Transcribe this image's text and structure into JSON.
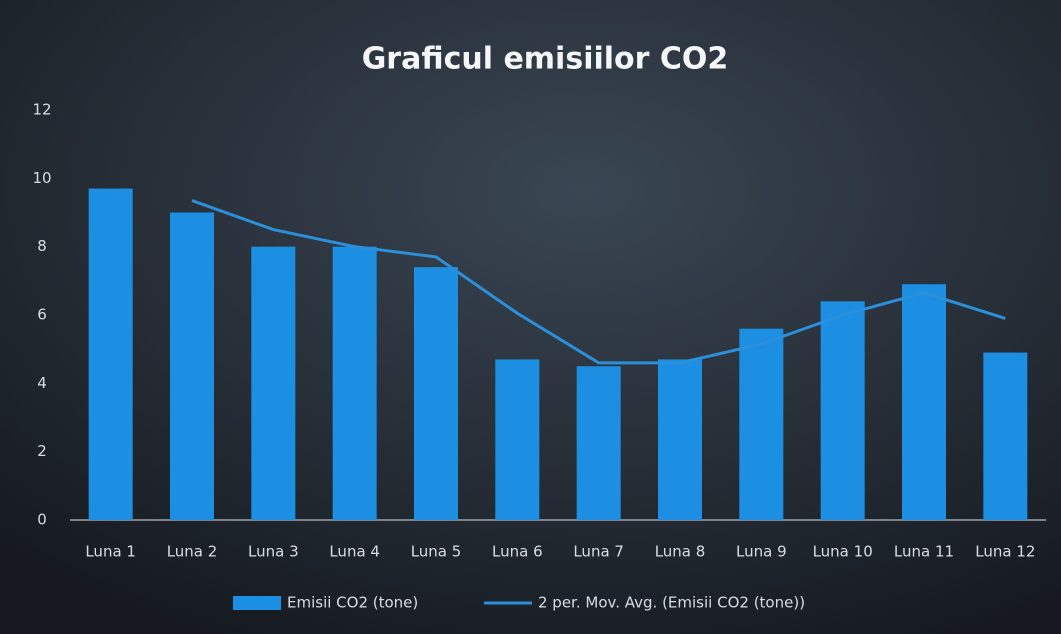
{
  "chart_data": {
    "type": "bar",
    "title": "Graficul emisiilor CO2",
    "categories": [
      "Luna 1",
      "Luna 2",
      "Luna 3",
      "Luna 4",
      "Luna 5",
      "Luna 6",
      "Luna 7",
      "Luna 8",
      "Luna 9",
      "Luna 10",
      "Luna 11",
      "Luna 12"
    ],
    "series": [
      {
        "name": "Emisii CO2 (tone)",
        "type": "bar",
        "color": "#1c8fe3",
        "values": [
          9.7,
          9.0,
          8.0,
          8.0,
          7.4,
          4.7,
          4.5,
          4.7,
          5.6,
          6.4,
          6.9,
          4.9
        ]
      },
      {
        "name": "2 per. Mov. Avg. (Emisii CO2 (tone))",
        "type": "line",
        "color": "#2b8fd9",
        "values": [
          null,
          9.35,
          8.5,
          8.0,
          7.7,
          6.05,
          4.6,
          4.6,
          5.15,
          6.0,
          6.65,
          5.9
        ]
      }
    ],
    "ylim": [
      0,
      12
    ],
    "yticks": [
      0,
      2,
      4,
      6,
      8,
      10,
      12
    ],
    "grid": false,
    "legend": "bottom"
  }
}
